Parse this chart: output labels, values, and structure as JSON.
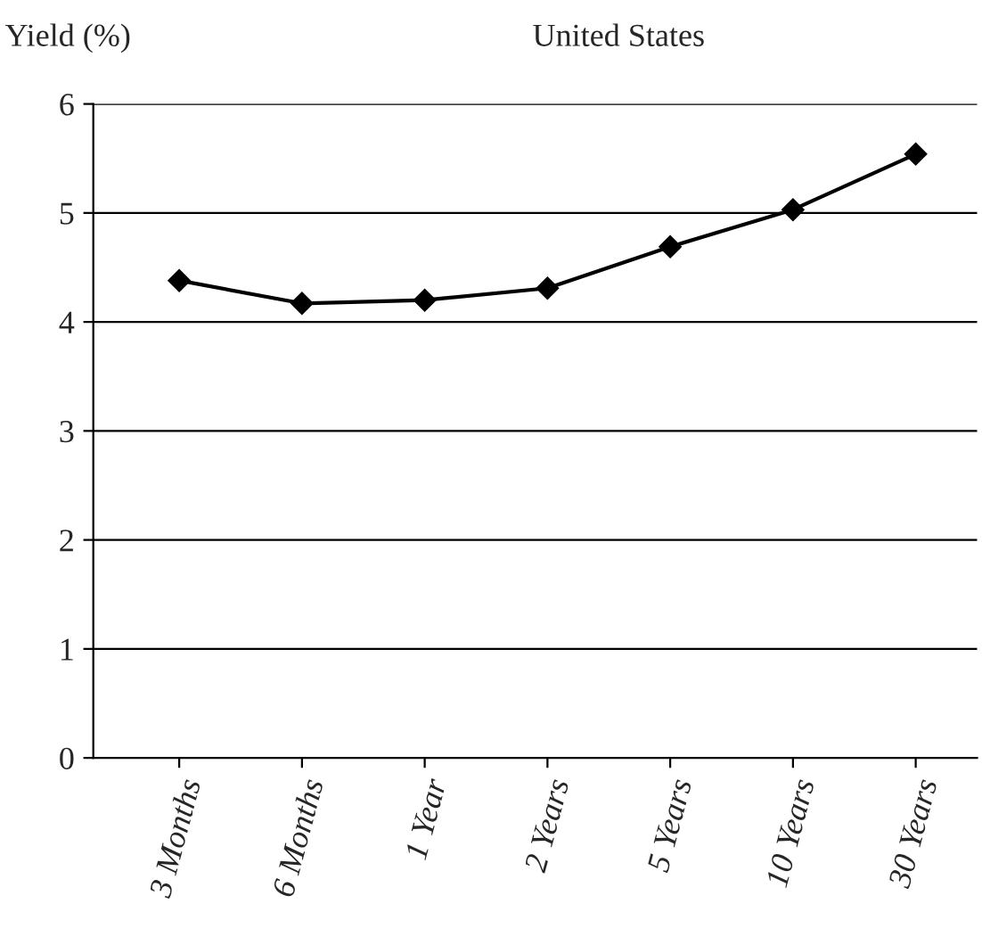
{
  "chart_data": {
    "type": "line",
    "title": "United States",
    "ylabel": "Yield (%)",
    "categories": [
      "3 Months",
      "6 Months",
      "1 Year",
      "2 Years",
      "5 Years",
      "10 Years",
      "30 Years"
    ],
    "series": [
      {
        "color": "#000000",
        "values": [
          4.38,
          4.17,
          4.2,
          4.31,
          4.69,
          5.03,
          5.54
        ]
      }
    ],
    "ylim": [
      0,
      6
    ],
    "yticks": [
      0,
      1,
      2,
      3,
      4,
      5,
      6
    ],
    "grid": "y",
    "marker": "diamond",
    "line_style": "solid",
    "legend": false
  }
}
